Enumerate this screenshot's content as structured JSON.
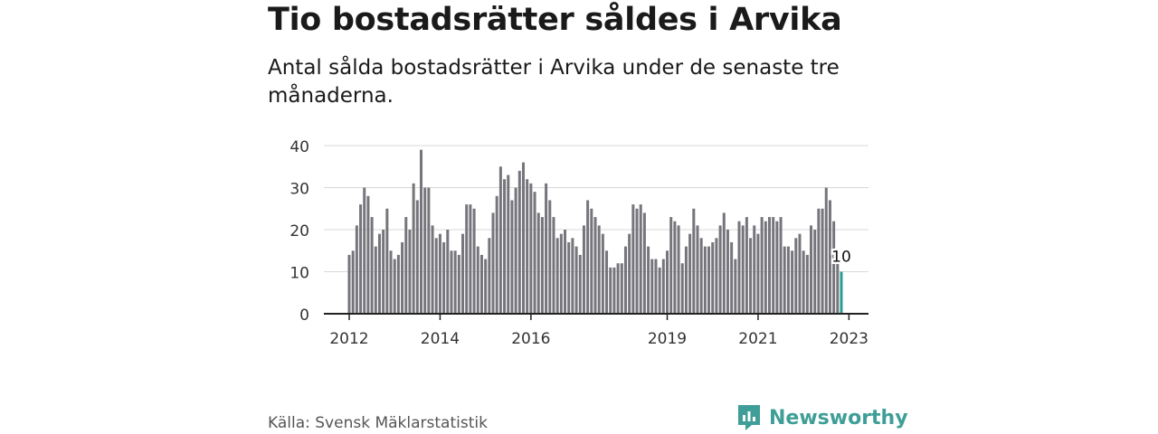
{
  "title": "Tio bostadsrätter såldes i Arvika",
  "subtitle": "Antal sålda bostadsrätter i Arvika under de senaste tre månaderna.",
  "source": "Källa: Svensk Mäklarstatistik",
  "brand": {
    "name": "Newsworthy",
    "icon": "newsworthy-logo-icon"
  },
  "colors": {
    "bar": "#76757c",
    "highlight": "#2a9d94",
    "grid": "#d8d8d8",
    "axis": "#222222",
    "brand": "#3f9e97"
  },
  "chart_data": {
    "type": "bar",
    "ylim": [
      0,
      40
    ],
    "yticks": [
      0,
      10,
      20,
      30,
      40
    ],
    "xticks": [
      "2012",
      "2014",
      "2016",
      "2019",
      "2021",
      "2023"
    ],
    "grid": true,
    "annotation": {
      "label": "10",
      "value": 10
    },
    "values": [
      14,
      15,
      21,
      26,
      30,
      28,
      23,
      16,
      19,
      20,
      25,
      15,
      13,
      14,
      17,
      23,
      20,
      31,
      27,
      39,
      30,
      30,
      21,
      18,
      19,
      17,
      20,
      15,
      15,
      14,
      19,
      26,
      26,
      25,
      16,
      14,
      13,
      18,
      24,
      28,
      35,
      32,
      33,
      27,
      30,
      34,
      36,
      32,
      31,
      29,
      24,
      23,
      31,
      27,
      23,
      18,
      19,
      20,
      17,
      18,
      16,
      14,
      21,
      27,
      25,
      23,
      21,
      19,
      15,
      11,
      11,
      12,
      12,
      16,
      19,
      26,
      25,
      26,
      24,
      16,
      13,
      13,
      11,
      13,
      15,
      23,
      22,
      21,
      12,
      16,
      19,
      25,
      21,
      18,
      16,
      16,
      17,
      18,
      21,
      24,
      20,
      17,
      13,
      22,
      21,
      23,
      18,
      21,
      19,
      23,
      22,
      23,
      23,
      22,
      23,
      16,
      16,
      15,
      18,
      19,
      15,
      14,
      21,
      20,
      25,
      25,
      30,
      27,
      22,
      14,
      10
    ],
    "highlight_last": true
  }
}
